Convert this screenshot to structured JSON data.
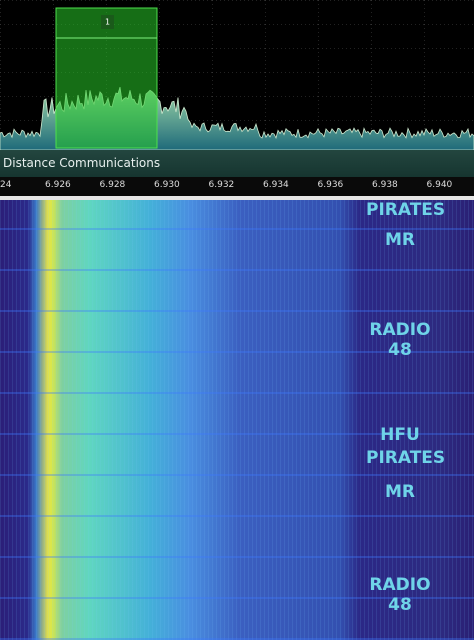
{
  "spectrum": {
    "selection": {
      "label": "1"
    }
  },
  "band_plan": {
    "label": "Distance Communications"
  },
  "frequency_scale": {
    "labels": [
      "24",
      "6.926",
      "6.928",
      "6.930",
      "6.932",
      "6.934",
      "6.936",
      "6.938",
      "6.940"
    ]
  },
  "waterfall": {
    "image_text": [
      "PIRATES",
      "MR",
      "RADIO 48",
      "HFU",
      "PIRATES",
      "MR",
      "RADIO 48"
    ]
  }
}
